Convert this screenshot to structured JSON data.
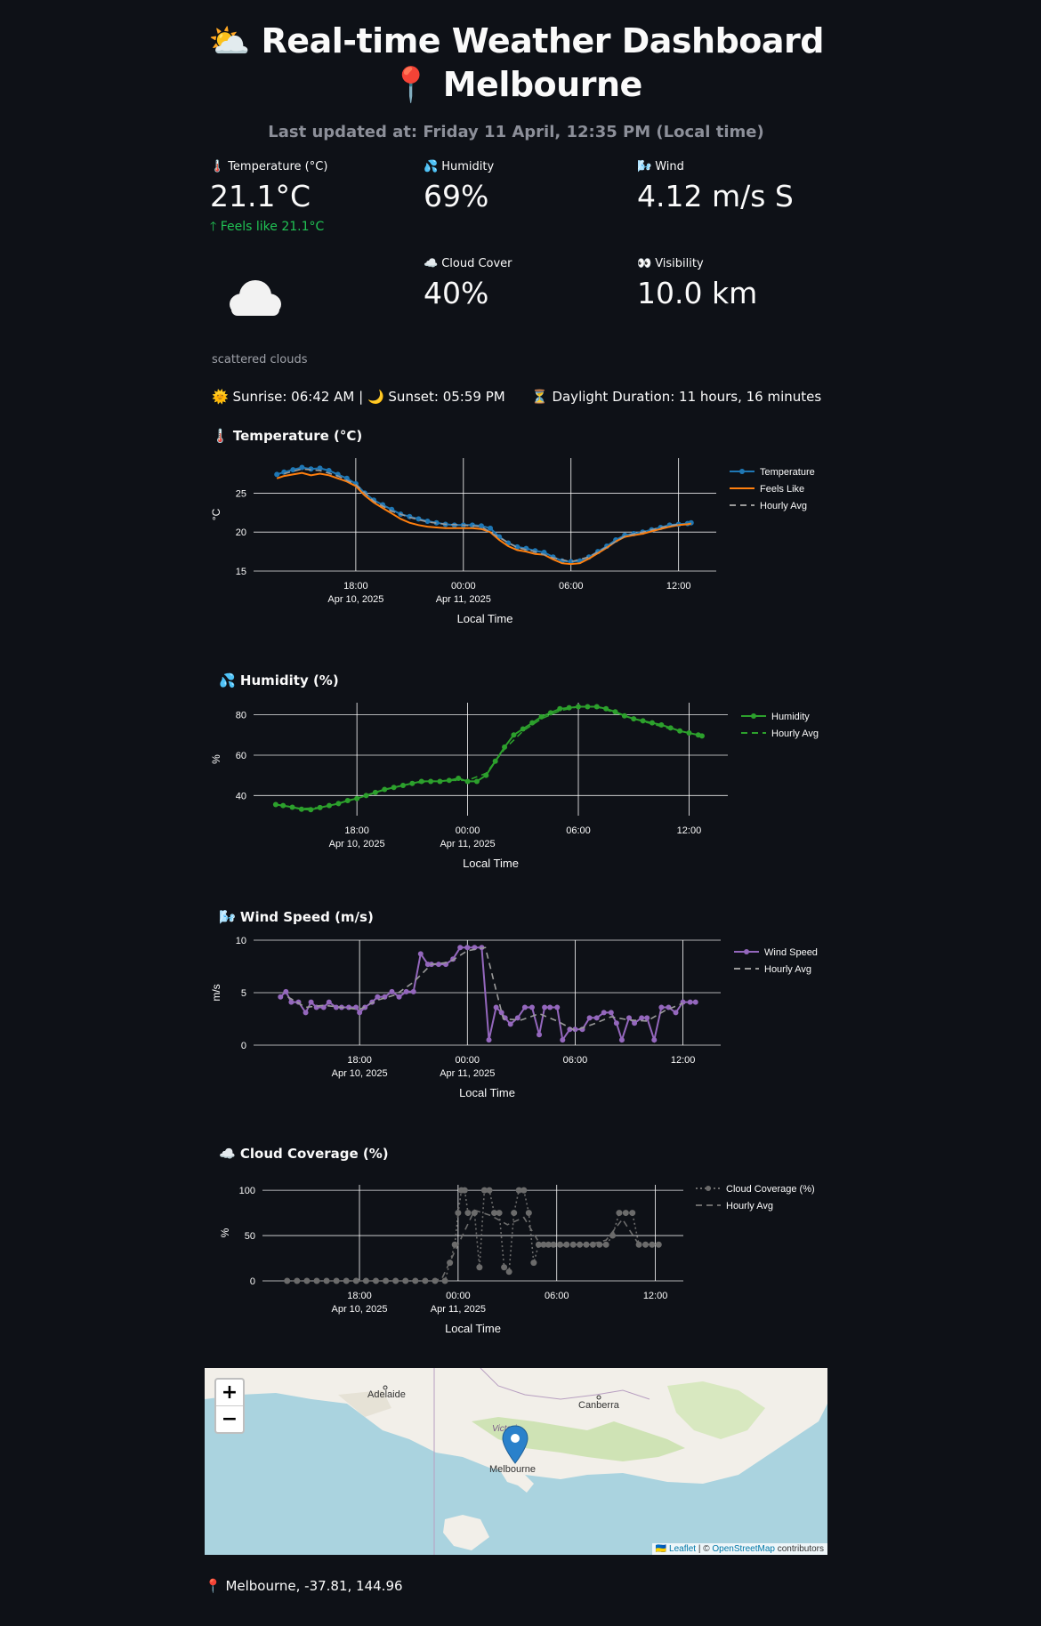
{
  "header": {
    "title_line1": "⛅ Real-time Weather Dashboard",
    "title_line2": "📍 Melbourne",
    "updated": "Last updated at: Friday 11 April, 12:35 PM (Local time)"
  },
  "metrics": {
    "temperature": {
      "label": "Temperature (°C)",
      "value": "21.1°C",
      "delta": "Feels like 21.1°C",
      "icon": "thermometer-icon"
    },
    "humidity": {
      "label": "Humidity",
      "value": "69%",
      "icon": "droplets-icon"
    },
    "wind": {
      "label": "Wind",
      "value": "4.12 m/s S",
      "icon": "wind-icon"
    },
    "cloud": {
      "label": "Cloud Cover",
      "value": "40%",
      "icon": "cloud-icon"
    },
    "visibility": {
      "label": "Visibility",
      "value": "10.0 km",
      "icon": "eyes-icon"
    }
  },
  "condition": {
    "icon": "cloud-icon",
    "caption": "scattered clouds"
  },
  "sun": {
    "sunrise": "🌞 Sunrise: 06:42 AM | 🌙 Sunset: 05:59 PM",
    "daylight": "⏳ Daylight Duration: 11 hours, 16 minutes"
  },
  "sections": {
    "temp": "🌡️ Temperature (°C)",
    "humidity": "💦 Humidity (%)",
    "wind": "🌬️ Wind Speed (m/s)",
    "cloud": "☁️ Cloud Coverage (%)"
  },
  "chart_data": [
    {
      "type": "line",
      "id": "temp",
      "xlabel": "Local Time",
      "ylabel": "°C",
      "ylim": [
        15,
        29.5
      ],
      "yticks": [
        15,
        20,
        25
      ],
      "x_ticks": [
        {
          "h": 18,
          "l1": "18:00",
          "l2": "Apr 10, 2025"
        },
        {
          "h": 24,
          "l1": "00:00",
          "l2": "Apr 11, 2025"
        },
        {
          "h": 30,
          "l1": "06:00",
          "l2": ""
        },
        {
          "h": 36,
          "l1": "12:00",
          "l2": ""
        }
      ],
      "xlim": [
        12.3,
        38.1
      ],
      "series": [
        {
          "name": "Temperature",
          "color": "#1f77b4",
          "marker": true,
          "x": [
            13.6,
            14,
            14.5,
            15,
            15.5,
            16,
            16.5,
            17,
            17.5,
            18,
            18.5,
            19,
            19.5,
            20,
            20.5,
            21,
            21.5,
            22,
            22.5,
            23,
            23.5,
            24,
            24.5,
            25,
            25.5,
            26,
            26.5,
            27,
            27.5,
            28,
            28.5,
            29,
            29.5,
            30,
            30.5,
            31,
            31.5,
            32,
            32.5,
            33,
            33.5,
            34,
            34.5,
            35,
            35.5,
            36,
            36.5,
            36.7
          ],
          "y": [
            27.4,
            27.7,
            28,
            28.3,
            28.1,
            28.2,
            27.9,
            27.4,
            26.9,
            26.2,
            25,
            24.1,
            23.5,
            22.9,
            22.3,
            22,
            21.7,
            21.4,
            21.2,
            21,
            20.9,
            20.9,
            20.9,
            20.8,
            20.5,
            19.4,
            18.6,
            18.1,
            17.9,
            17.6,
            17.4,
            16.8,
            16.3,
            16.2,
            16.3,
            16.8,
            17.5,
            18.2,
            19,
            19.6,
            19.8,
            20,
            20.3,
            20.6,
            20.9,
            21,
            21.1,
            21.2
          ]
        },
        {
          "name": "Feels Like",
          "color": "#ff7f0e",
          "marker": false,
          "x": [
            13.6,
            14,
            14.5,
            15,
            15.5,
            16,
            16.5,
            17,
            17.5,
            18,
            18.5,
            19,
            19.5,
            20,
            20.5,
            21,
            21.5,
            22,
            22.5,
            23,
            23.5,
            24,
            24.5,
            25,
            25.5,
            26,
            26.5,
            27,
            27.5,
            28,
            28.5,
            29,
            29.5,
            30,
            30.5,
            31,
            31.5,
            32,
            32.5,
            33,
            33.5,
            34,
            34.5,
            35,
            35.5,
            36,
            36.5,
            36.7
          ],
          "y": [
            26.9,
            27.2,
            27.4,
            27.6,
            27.3,
            27.5,
            27.3,
            26.9,
            26.5,
            25.9,
            24.7,
            23.8,
            23.1,
            22.4,
            21.7,
            21.2,
            20.9,
            20.7,
            20.6,
            20.5,
            20.5,
            20.5,
            20.5,
            20.4,
            20,
            19,
            18.2,
            17.7,
            17.5,
            17.2,
            17.1,
            16.5,
            16,
            15.9,
            16,
            16.6,
            17.3,
            18,
            18.8,
            19.4,
            19.6,
            19.8,
            20.1,
            20.4,
            20.7,
            20.9,
            21,
            21.1
          ]
        },
        {
          "name": "Hourly Avg",
          "color": "#9a9a9a",
          "dash": true,
          "x": [
            14,
            15,
            16,
            17,
            18,
            19,
            20,
            21,
            22,
            23,
            24,
            25,
            26,
            27,
            28,
            29,
            30,
            31,
            32,
            33,
            34,
            35,
            36
          ],
          "y": [
            27.5,
            28.1,
            27.9,
            27.2,
            26.1,
            24,
            22.7,
            21.9,
            21.3,
            21,
            20.9,
            20.7,
            19.3,
            18,
            17.5,
            16.7,
            16.2,
            16.8,
            18.1,
            19.5,
            20,
            20.6,
            21
          ]
        }
      ]
    },
    {
      "type": "line",
      "id": "humidity",
      "xlabel": "Local Time",
      "ylabel": "%",
      "ylim": [
        30,
        86
      ],
      "yticks": [
        40,
        60,
        80
      ],
      "x_ticks": [
        {
          "h": 18,
          "l1": "18:00",
          "l2": "Apr 10, 2025"
        },
        {
          "h": 24,
          "l1": "00:00",
          "l2": "Apr 11, 2025"
        },
        {
          "h": 30,
          "l1": "06:00",
          "l2": ""
        },
        {
          "h": 36,
          "l1": "12:00",
          "l2": ""
        }
      ],
      "xlim": [
        12.4,
        38.1
      ],
      "series": [
        {
          "name": "Humidity",
          "color": "#2ca02c",
          "marker": true,
          "x": [
            13.6,
            14,
            14.5,
            15,
            15.5,
            16,
            16.5,
            17,
            17.5,
            18,
            18.5,
            19,
            19.5,
            20,
            20.5,
            21,
            21.5,
            22,
            22.5,
            23,
            23.5,
            24,
            24.5,
            25,
            25.5,
            26,
            26.5,
            27,
            27.5,
            28,
            28.5,
            29,
            29.5,
            30,
            30.5,
            31,
            31.5,
            32,
            32.5,
            33,
            33.5,
            34,
            34.5,
            35,
            35.5,
            36,
            36.5,
            36.7
          ],
          "y": [
            35.5,
            35,
            34.2,
            33.2,
            33,
            34,
            35,
            36,
            37.5,
            38.5,
            40,
            41.5,
            43,
            44,
            45,
            46,
            47,
            47,
            47,
            47.5,
            48.5,
            47,
            47,
            50,
            57,
            64,
            70,
            73,
            76,
            79,
            81,
            83,
            83.5,
            84,
            84,
            84,
            83,
            81.5,
            79.5,
            78,
            77,
            76,
            75,
            73.5,
            72,
            71,
            70,
            69.5
          ]
        },
        {
          "name": "Hourly Avg",
          "color": "#2ca02c",
          "dash": true,
          "x": [
            14,
            15,
            16,
            17,
            18,
            19,
            20,
            21,
            22,
            23,
            24,
            25,
            26,
            27,
            28,
            29,
            30,
            31,
            32,
            33,
            34,
            35,
            36
          ],
          "y": [
            35,
            33.5,
            34,
            36,
            38.5,
            41.5,
            44,
            46,
            47,
            47.5,
            47.5,
            51,
            63,
            72,
            78,
            82,
            84,
            84,
            81,
            78,
            75.5,
            73,
            71
          ]
        }
      ]
    },
    {
      "type": "line",
      "id": "wind",
      "xlabel": "Local Time",
      "ylabel": "m/s",
      "ylim": [
        0,
        10
      ],
      "yticks": [
        0,
        5,
        10
      ],
      "x_ticks": [
        {
          "h": 18,
          "l1": "18:00",
          "l2": "Apr 10, 2025"
        },
        {
          "h": 24,
          "l1": "00:00",
          "l2": "Apr 11, 2025"
        },
        {
          "h": 30,
          "l1": "06:00",
          "l2": ""
        },
        {
          "h": 36,
          "l1": "12:00",
          "l2": ""
        }
      ],
      "xlim": [
        12.1,
        38.1
      ],
      "series": [
        {
          "name": "Wind Speed",
          "color": "#9467bd",
          "marker": true,
          "x": [
            13.6,
            13.9,
            14.2,
            14.6,
            15,
            15.3,
            15.6,
            16,
            16.3,
            16.7,
            17,
            17.4,
            17.8,
            18,
            18.3,
            18.7,
            19,
            19.4,
            19.8,
            20.2,
            20.6,
            21,
            21.4,
            21.8,
            22,
            22.4,
            22.8,
            23.2,
            23.6,
            24,
            24.4,
            24.8,
            25.2,
            25.6,
            25.9,
            26.1,
            26.4,
            26.8,
            27.2,
            27.6,
            28,
            28.3,
            28.6,
            29,
            29.3,
            29.7,
            30,
            30.4,
            30.8,
            31.2,
            31.6,
            32,
            32.3,
            32.6,
            33,
            33.3,
            33.7,
            34,
            34.4,
            34.8,
            35.2,
            35.6,
            36,
            36.4,
            36.7
          ],
          "y": [
            4.6,
            5.1,
            4.1,
            4.1,
            3.1,
            4.1,
            3.6,
            3.6,
            4.1,
            3.6,
            3.6,
            3.6,
            3.6,
            3.1,
            3.6,
            4.1,
            4.6,
            4.6,
            5.1,
            4.6,
            5.1,
            5.1,
            8.7,
            7.7,
            7.7,
            7.7,
            7.7,
            8.2,
            9.3,
            9.3,
            9.3,
            9.3,
            0.5,
            3.6,
            3.1,
            2.6,
            2,
            2.6,
            3.6,
            3.6,
            1,
            3.6,
            3.6,
            3.6,
            0.5,
            1.5,
            1.5,
            1.5,
            2.6,
            2.6,
            3.1,
            3.1,
            2.1,
            0.5,
            2.6,
            2.1,
            2.6,
            2.6,
            0.5,
            3.6,
            3.6,
            3.1,
            4.1,
            4.1,
            4.1
          ]
        },
        {
          "name": "Hourly Avg",
          "color": "#9a9a9a",
          "dash": true,
          "x": [
            14,
            15,
            16,
            17,
            18,
            19,
            20,
            21,
            22,
            23,
            24,
            25,
            26,
            27,
            28,
            29,
            30,
            31,
            32,
            33,
            34,
            35,
            36
          ],
          "y": [
            4.6,
            3.6,
            3.8,
            3.6,
            3.4,
            4.3,
            4.8,
            6,
            7.7,
            7.9,
            9,
            9.3,
            2.5,
            2.4,
            3,
            2.3,
            1.4,
            2,
            2.7,
            2.4,
            2.3,
            3.3,
            4
          ]
        }
      ]
    },
    {
      "type": "line",
      "id": "cloud",
      "xlabel": "Local Time",
      "ylabel": "%",
      "ylim": [
        0,
        106
      ],
      "yticks": [
        0,
        50,
        100
      ],
      "x_ticks": [
        {
          "h": 18,
          "l1": "18:00",
          "l2": "Apr 10, 2025"
        },
        {
          "h": 24,
          "l1": "00:00",
          "l2": "Apr 11, 2025"
        },
        {
          "h": 30,
          "l1": "06:00",
          "l2": ""
        },
        {
          "h": 36,
          "l1": "12:00",
          "l2": ""
        }
      ],
      "xlim": [
        12.1,
        37.7
      ],
      "series": [
        {
          "name": "Cloud Coverage (%)",
          "color": "#6b6b6b",
          "marker": true,
          "dots": true,
          "x": [
            13.6,
            14.2,
            14.8,
            15.4,
            16,
            16.6,
            17.2,
            17.8,
            18.4,
            19,
            19.6,
            20.2,
            20.8,
            21.4,
            22,
            22.6,
            23.2,
            23.5,
            23.8,
            24,
            24.2,
            24.4,
            24.6,
            25,
            25.3,
            25.6,
            25.9,
            26.2,
            26.5,
            26.8,
            27.1,
            27.4,
            27.7,
            28,
            28.3,
            28.6,
            28.9,
            29.2,
            29.5,
            29.8,
            30.2,
            30.6,
            31,
            31.4,
            31.8,
            32.2,
            32.6,
            33,
            33.4,
            33.8,
            34.2,
            34.6,
            35,
            35.4,
            35.8,
            36.2
          ],
          "y": [
            0,
            0,
            0,
            0,
            0,
            0,
            0,
            0,
            0,
            0,
            0,
            0,
            0,
            0,
            0,
            0,
            0,
            20,
            40,
            75,
            100,
            100,
            75,
            75,
            15,
            100,
            100,
            75,
            75,
            15,
            10,
            75,
            100,
            100,
            75,
            20,
            40,
            40,
            40,
            40,
            40,
            40,
            40,
            40,
            40,
            40,
            40,
            40,
            50,
            75,
            75,
            75,
            40,
            40,
            40,
            40
          ]
        },
        {
          "name": "Hourly Avg",
          "color": "#6b6b6b",
          "dash": true,
          "x": [
            14,
            15,
            16,
            17,
            18,
            19,
            20,
            21,
            22,
            23,
            24,
            25,
            26,
            27,
            28,
            29,
            30,
            31,
            32,
            33,
            34,
            35,
            36
          ],
          "y": [
            0,
            0,
            0,
            0,
            0,
            0,
            0,
            0,
            0,
            2,
            40,
            78,
            72,
            62,
            70,
            40,
            38,
            40,
            40,
            45,
            68,
            40,
            40
          ]
        }
      ]
    }
  ],
  "map": {
    "zoom_in": "+",
    "zoom_out": "−",
    "labels": {
      "adelaide": "Adelaide",
      "canberra": "Canberra",
      "melbourne": "Melbourne",
      "victoria": "Victoria"
    },
    "attribution_leaflet": "Leaflet",
    "attribution_sep": " | © ",
    "attribution_osm": "OpenStreetMap",
    "attribution_tail": " contributors",
    "footer": "📍 Melbourne, -37.81, 144.96",
    "sea_color": "#aad3df",
    "land_color": "#f2efe9"
  }
}
